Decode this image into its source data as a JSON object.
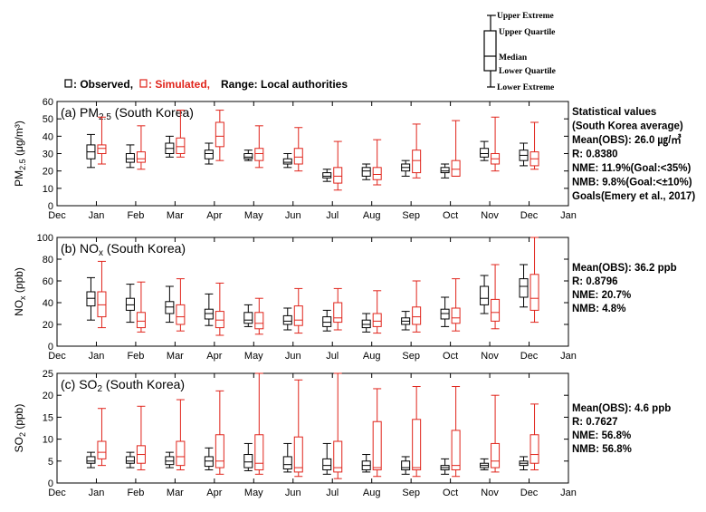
{
  "legend": {
    "observed_label": ": Observed,",
    "simulated_label": ": Simulated,",
    "range_label": "Range: Local authorities",
    "key": {
      "upper_extreme": "Upper Extreme",
      "upper_quartile": "Upper Quartile",
      "median": "Median",
      "lower_quartile": "Lower Quartile",
      "lower_extreme": "Lower Extreme"
    }
  },
  "colors": {
    "observed": "#000000",
    "simulated": "#e0241b",
    "axis": "#000000"
  },
  "months": [
    "Dec",
    "Jan",
    "Feb",
    "Mar",
    "Apr",
    "May",
    "Jun",
    "Jul",
    "Aug",
    "Sep",
    "Oct",
    "Nov",
    "Dec",
    "Jan"
  ],
  "chart_data": [
    {
      "type": "boxplot",
      "title_main": "(a) PM",
      "title_sub": "2.5",
      "title_tail": " (South Korea)",
      "ylabel_main": "PM",
      "ylabel_sub": "2.5",
      "ylabel_tail": " (μg/m³)",
      "ylim": [
        0,
        60
      ],
      "yticks": [
        0,
        10,
        20,
        30,
        40,
        50,
        60
      ],
      "categories": [
        "Jan",
        "Feb",
        "Mar",
        "Apr",
        "May",
        "Jun",
        "Jul",
        "Aug",
        "Sep",
        "Oct",
        "Nov",
        "Dec"
      ],
      "series": [
        {
          "name": "Observed",
          "boxes": [
            [
              22,
              27,
              31,
              35,
              41
            ],
            [
              22,
              25,
              27,
              30,
              35
            ],
            [
              28,
              30,
              33,
              36,
              40
            ],
            [
              24,
              27,
              30,
              32,
              36
            ],
            [
              26,
              27,
              28,
              30,
              32
            ],
            [
              22,
              24,
              25,
              27,
              30
            ],
            [
              14,
              16,
              17,
              19,
              21
            ],
            [
              15,
              17,
              20,
              22,
              24
            ],
            [
              17,
              20,
              22,
              24,
              26
            ],
            [
              16,
              19,
              20,
              22,
              24
            ],
            [
              26,
              28,
              30,
              33,
              37
            ],
            [
              23,
              26,
              29,
              32,
              36
            ]
          ]
        },
        {
          "name": "Simulated",
          "boxes": [
            [
              24,
              30,
              33,
              35,
              51
            ],
            [
              21,
              25,
              27,
              31,
              46
            ],
            [
              28,
              30,
              34,
              39,
              55
            ],
            [
              26,
              34,
              40,
              48,
              55
            ],
            [
              22,
              26,
              30,
              33,
              46
            ],
            [
              20,
              24,
              28,
              33,
              45
            ],
            [
              9,
              13,
              17,
              22,
              37
            ],
            [
              12,
              15,
              18,
              22,
              38
            ],
            [
              16,
              19,
              26,
              32,
              47
            ],
            [
              17,
              17,
              21,
              26,
              49
            ],
            [
              20,
              24,
              27,
              30,
              51
            ],
            [
              21,
              23,
              27,
              31,
              48
            ]
          ]
        }
      ],
      "stats": [
        "Statistical values",
        "(South Korea average)",
        "Mean(OBS): 26.0 ㎍/㎥",
        "R: 0.8380",
        "NME: 11.9%(Goal:<35%)",
        "NMB: 9.8%(Goal:<±10%)",
        "Goals(Emery et al., 2017)"
      ]
    },
    {
      "type": "boxplot",
      "title_main": "(b) NO",
      "title_sub": "x",
      "title_tail": " (South Korea)",
      "ylabel_main": "NO",
      "ylabel_sub": "x",
      "ylabel_tail": " (ppb)",
      "ylim": [
        0,
        100
      ],
      "yticks": [
        0,
        20,
        40,
        60,
        80,
        100
      ],
      "categories": [
        "Jan",
        "Feb",
        "Mar",
        "Apr",
        "May",
        "Jun",
        "Jul",
        "Aug",
        "Sep",
        "Oct",
        "Nov",
        "Dec"
      ],
      "series": [
        {
          "name": "Observed",
          "boxes": [
            [
              24,
              37,
              44,
              50,
              63
            ],
            [
              22,
              33,
              38,
              44,
              57
            ],
            [
              22,
              30,
              36,
              41,
              55
            ],
            [
              19,
              25,
              30,
              34,
              48
            ],
            [
              18,
              21,
              24,
              31,
              38
            ],
            [
              15,
              20,
              23,
              28,
              35
            ],
            [
              14,
              18,
              22,
              27,
              33
            ],
            [
              13,
              17,
              20,
              24,
              30
            ],
            [
              15,
              20,
              23,
              26,
              32
            ],
            [
              18,
              25,
              30,
              34,
              45
            ],
            [
              30,
              38,
              44,
              55,
              65
            ],
            [
              36,
              45,
              55,
              62,
              75
            ]
          ]
        },
        {
          "name": "Simulated",
          "boxes": [
            [
              17,
              27,
              38,
              50,
              78
            ],
            [
              13,
              17,
              23,
              31,
              59
            ],
            [
              14,
              20,
              27,
              38,
              62
            ],
            [
              10,
              17,
              24,
              32,
              58
            ],
            [
              11,
              16,
              21,
              31,
              44
            ],
            [
              12,
              19,
              24,
              37,
              53
            ],
            [
              15,
              22,
              26,
              40,
              53
            ],
            [
              12,
              18,
              23,
              30,
              51
            ],
            [
              13,
              20,
              27,
              36,
              60
            ],
            [
              14,
              21,
              26,
              35,
              62
            ],
            [
              16,
              23,
              31,
              43,
              75
            ],
            [
              22,
              33,
              44,
              66,
              100
            ]
          ]
        }
      ],
      "stats": [
        "Mean(OBS): 36.2 ppb",
        "R: 0.8796",
        "NME: 20.7%",
        "NMB: 4.8%"
      ]
    },
    {
      "type": "boxplot",
      "title_main": "(c) SO",
      "title_sub": "2",
      "title_tail": " (South Korea)",
      "ylabel_main": "SO",
      "ylabel_sub": "2",
      "ylabel_tail": " (ppb)",
      "ylim": [
        0,
        25
      ],
      "yticks": [
        0,
        5,
        10,
        15,
        20,
        25
      ],
      "categories": [
        "Jan",
        "Feb",
        "Mar",
        "Apr",
        "May",
        "Jun",
        "Jul",
        "Aug",
        "Sep",
        "Oct",
        "Nov",
        "Dec"
      ],
      "series": [
        {
          "name": "Observed",
          "boxes": [
            [
              3.5,
              4.5,
              5,
              6,
              7
            ],
            [
              3.5,
              4.5,
              5,
              6,
              7
            ],
            [
              3.5,
              4.2,
              5,
              6,
              7
            ],
            [
              3,
              3.8,
              5,
              6,
              8
            ],
            [
              2.8,
              3.5,
              4.8,
              6.5,
              9
            ],
            [
              2.5,
              3.2,
              4.2,
              6,
              9
            ],
            [
              2,
              3,
              4,
              5.5,
              9
            ],
            [
              2.5,
              3,
              4,
              5,
              6.5
            ],
            [
              2,
              3,
              3.5,
              5,
              6
            ],
            [
              2,
              3,
              3.5,
              4,
              5.5
            ],
            [
              3,
              3.5,
              4,
              4.5,
              5.5
            ],
            [
              3,
              4,
              4.5,
              5,
              6
            ]
          ]
        },
        {
          "name": "Simulated",
          "boxes": [
            [
              4,
              5.5,
              7,
              9.5,
              17
            ],
            [
              3,
              4.5,
              6.5,
              8.5,
              17.5
            ],
            [
              3,
              4,
              6,
              9.5,
              19
            ],
            [
              2,
              3.5,
              5,
              11,
              21
            ],
            [
              2,
              3,
              4.5,
              11,
              25
            ],
            [
              1.5,
              2.5,
              3.5,
              10.5,
              23.5
            ],
            [
              1,
              2.5,
              3.5,
              9.5,
              26
            ],
            [
              1.5,
              3,
              3.5,
              14,
              21.5
            ],
            [
              1.5,
              3,
              3.5,
              14.5,
              22
            ],
            [
              1.5,
              3,
              4,
              12,
              22
            ],
            [
              2.5,
              3.5,
              5,
              9,
              20
            ],
            [
              3,
              4.5,
              6.5,
              11,
              18
            ]
          ]
        }
      ],
      "stats": [
        "Mean(OBS): 4.6 ppb",
        "R: 0.7627",
        "NME: 56.8%",
        "NMB: 56.8%"
      ]
    }
  ]
}
